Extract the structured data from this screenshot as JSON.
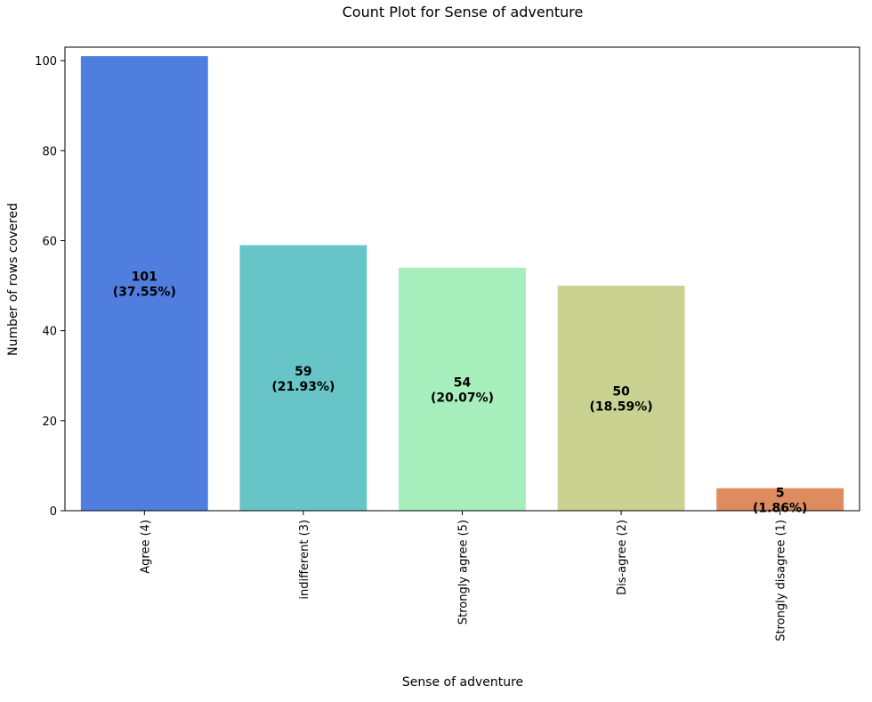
{
  "chart_data": {
    "type": "bar",
    "title": "Count Plot for Sense of adventure",
    "xlabel": "Sense of adventure",
    "ylabel": "Number of rows covered",
    "ylim": [
      0,
      103
    ],
    "yticks": [
      0,
      20,
      40,
      60,
      80,
      100
    ],
    "grid": false,
    "categories": [
      "Agree (4)",
      "indifferent (3)",
      "Strongly agree (5)",
      "Dis-agree (2)",
      "Strongly disagree (1)"
    ],
    "values": [
      101,
      59,
      54,
      50,
      5
    ],
    "labels": [
      {
        "count": "101",
        "pct": "(37.55%)"
      },
      {
        "count": "59",
        "pct": "(21.93%)"
      },
      {
        "count": "54",
        "pct": "(20.07%)"
      },
      {
        "count": "50",
        "pct": "(18.59%)"
      },
      {
        "count": "5",
        "pct": "(1.86%)"
      }
    ],
    "colors": [
      "#4f7ede",
      "#68c5c7",
      "#a6eebb",
      "#cad292",
      "#dd8b5f"
    ]
  }
}
